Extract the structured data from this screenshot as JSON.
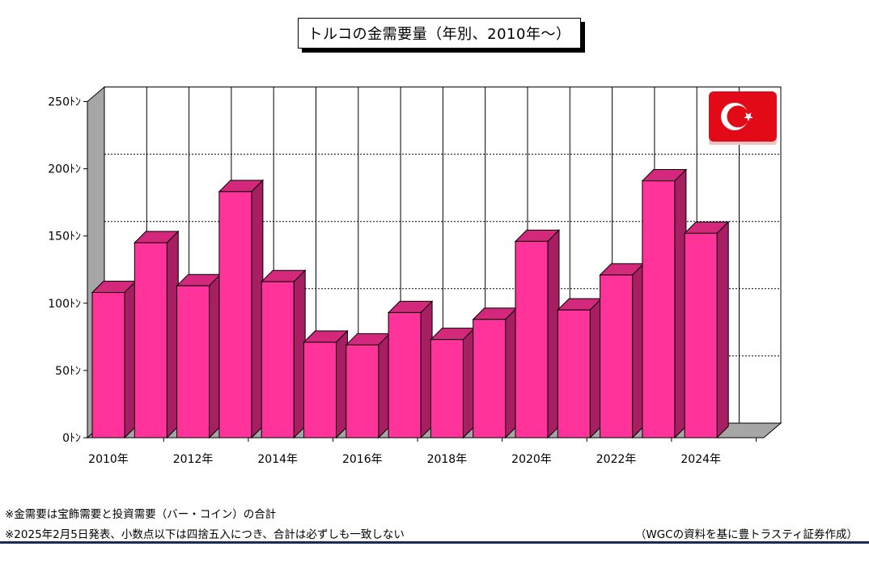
{
  "chart_data": {
    "type": "bar",
    "title": "トルコの金需要量（年別、2010年～）",
    "categories": [
      "2010",
      "2011",
      "2012",
      "2013",
      "2014",
      "2015",
      "2016",
      "2017",
      "2018",
      "2019",
      "2020",
      "2021",
      "2022",
      "2023",
      "2024"
    ],
    "values": [
      108,
      145,
      113,
      183,
      116,
      71,
      69,
      93,
      73,
      88,
      146,
      95,
      121,
      191,
      152
    ],
    "y_tick_labels": [
      "0ﾄﾝ",
      "50ﾄﾝ",
      "100ﾄﾝ",
      "150ﾄﾝ",
      "200ﾄﾝ",
      "250ﾄﾝ"
    ],
    "ylim": [
      0,
      250
    ],
    "x_tick_labels": [
      "2010年",
      "2012年",
      "2014年",
      "2016年",
      "2018年",
      "2020年",
      "2022年",
      "2024年"
    ],
    "bar_color": "#ff3399",
    "grid": true,
    "style": "3d"
  },
  "flag_icon": "turkey-flag",
  "notes": {
    "line1": "※金需要は宝飾需要と投資需要（バー・コイン）の合計",
    "line2": "※2025年2月5日発表、小数点以下は四捨五入につき、合計は必ずしも一致しない",
    "source": "（WGCの資料を基に豊トラスティ証券作成）"
  },
  "colors": {
    "bar_front": "#ff3399",
    "bar_side": "#a81e63",
    "bar_top": "#d4287c",
    "rule": "#1b2a57"
  }
}
